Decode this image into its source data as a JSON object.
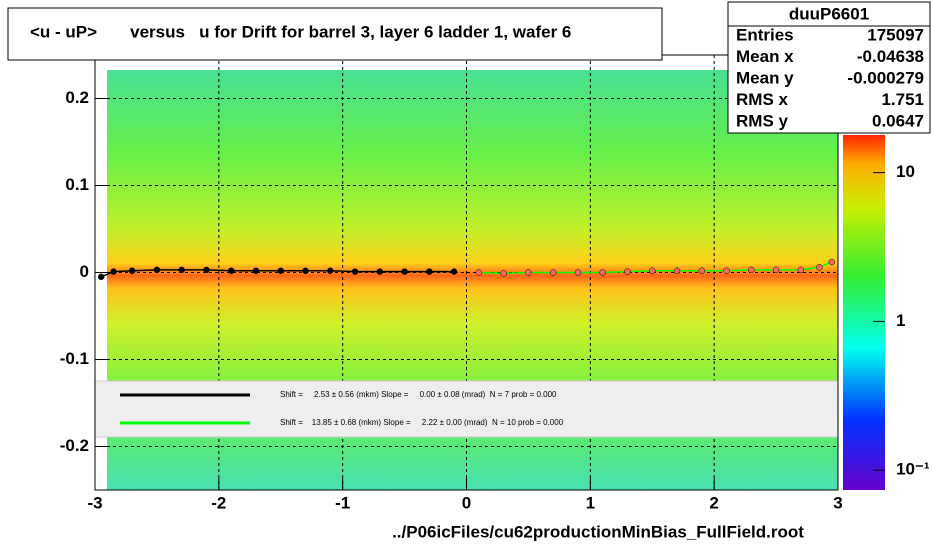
{
  "chart_data": {
    "type": "profile2d",
    "title": "<u - uP>       versus   u for Drift for barrel 3, layer 6 ladder 1, wafer 6",
    "xlim": [
      -3,
      3
    ],
    "xticks": [
      -3,
      -2,
      -1,
      0,
      1,
      2,
      3
    ],
    "ylim": [
      -0.25,
      0.25
    ],
    "yticks": [
      -0.2,
      -0.1,
      0,
      0.1,
      0.2
    ],
    "zlim": [
      0.0736,
      17.9
    ],
    "zscale": "log",
    "zticks": [
      10,
      1,
      {
        "value": 0.1,
        "label": "10⁻¹"
      }
    ],
    "grid": true,
    "stats": {
      "name": "duuP6601",
      "rows": [
        [
          "Entries",
          175097
        ],
        [
          "Mean x",
          -0.04638
        ],
        [
          "Mean y",
          -0.000279
        ],
        [
          "RMS x",
          1.751
        ],
        [
          "RMS y",
          0.0647
        ]
      ]
    },
    "series": [
      {
        "color": "#000000",
        "fit_label": "Shift =     2.53 ± 0.56 (mkm) Slope =     0.00 ± 0.08 (mrad)  N = 7 prob = 0.000",
        "x": [
          -2.95,
          -2.85,
          -2.7,
          -2.5,
          -2.3,
          -2.1,
          -1.9,
          -1.7,
          -1.5,
          -1.3,
          -1.1,
          -0.9,
          -0.7,
          -0.5,
          -0.3,
          -0.1
        ],
        "values": [
          -0.005,
          0.001,
          0.002,
          0.003,
          0.003,
          0.003,
          0.002,
          0.002,
          0.002,
          0.002,
          0.002,
          0.001,
          0.001,
          0.001,
          0.001,
          0.001
        ]
      },
      {
        "color": "#00ff00",
        "fit_label": "Shift =    13.85 ± 0.68 (mkm) Slope =     2.22 ± 0.00 (mrad)  N = 10 prob = 0.000",
        "x": [
          0.1,
          0.3,
          0.5,
          0.7,
          0.9,
          1.1,
          1.3,
          1.5,
          1.7,
          1.9,
          2.1,
          2.3,
          2.5,
          2.7,
          2.85,
          2.95
        ],
        "values": [
          0.0,
          -0.001,
          0.0,
          0.0,
          0.0,
          0.0,
          0.001,
          0.002,
          0.002,
          0.002,
          0.002,
          0.003,
          0.003,
          0.003,
          0.006,
          0.012
        ]
      }
    ],
    "footer": "../P06icFiles/cu62productionMinBias_FullField.root"
  }
}
